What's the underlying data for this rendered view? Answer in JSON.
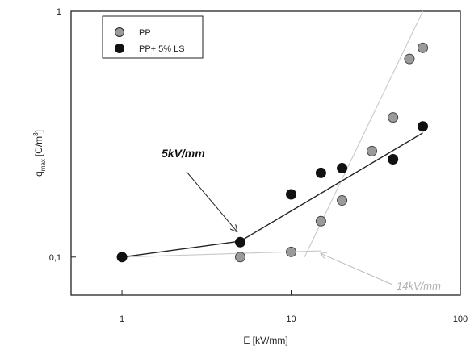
{
  "chart_data": {
    "type": "scatter",
    "xlabel": "E [kV/mm]",
    "ylabel": {
      "main": "q",
      "sub": "max",
      "unit": "[C/m",
      "sup": "3",
      "close": "]"
    },
    "x_scale": "log",
    "y_scale": "log",
    "xlim": [
      0.5,
      100
    ],
    "ylim": [
      0.07,
      1
    ],
    "x_ticks": [
      {
        "value": 1,
        "label": "1"
      },
      {
        "value": 10,
        "label": "10"
      },
      {
        "value": 100,
        "label": "100"
      }
    ],
    "y_ticks": [
      {
        "value": 0.1,
        "label": "0,1"
      },
      {
        "value": 1,
        "label": "1"
      }
    ],
    "grid": false,
    "legend_position": "top-left",
    "series": [
      {
        "name": "PP",
        "marker_color": "#9a9a9a",
        "points": [
          {
            "x": 5,
            "y": 0.1
          },
          {
            "x": 10,
            "y": 0.105
          },
          {
            "x": 15,
            "y": 0.14
          },
          {
            "x": 20,
            "y": 0.17
          },
          {
            "x": 30,
            "y": 0.27
          },
          {
            "x": 40,
            "y": 0.37
          },
          {
            "x": 50,
            "y": 0.64
          },
          {
            "x": 60,
            "y": 0.71
          }
        ],
        "fit_lines": [
          {
            "color": "#c8c8c8",
            "points": [
              {
                "x": 1,
                "y": 0.1
              },
              {
                "x": 15,
                "y": 0.106
              }
            ]
          },
          {
            "color": "#c8c8c8",
            "points": [
              {
                "x": 12,
                "y": 0.1
              },
              {
                "x": 60,
                "y": 1.0
              }
            ]
          }
        ]
      },
      {
        "name": "PP+ 5% LS",
        "marker_color": "#111111",
        "points": [
          {
            "x": 1,
            "y": 0.1
          },
          {
            "x": 5,
            "y": 0.115
          },
          {
            "x": 10,
            "y": 0.18
          },
          {
            "x": 15,
            "y": 0.22
          },
          {
            "x": 20,
            "y": 0.23
          },
          {
            "x": 40,
            "y": 0.25
          },
          {
            "x": 60,
            "y": 0.34
          }
        ],
        "fit_lines": [
          {
            "color": "#222222",
            "points": [
              {
                "x": 1,
                "y": 0.1
              },
              {
                "x": 5,
                "y": 0.116
              },
              {
                "x": 60,
                "y": 0.32
              }
            ]
          }
        ]
      }
    ],
    "annotations": [
      {
        "text": "5kV/mm",
        "style": "bold-italic",
        "color": "#111111",
        "arrow_to": {
          "x": 5,
          "y": 0.116
        }
      },
      {
        "text": "14kV/mm",
        "style": "italic",
        "color": "#b0b0b0",
        "arrow_to": {
          "x": 14,
          "y": 0.105
        }
      }
    ]
  }
}
